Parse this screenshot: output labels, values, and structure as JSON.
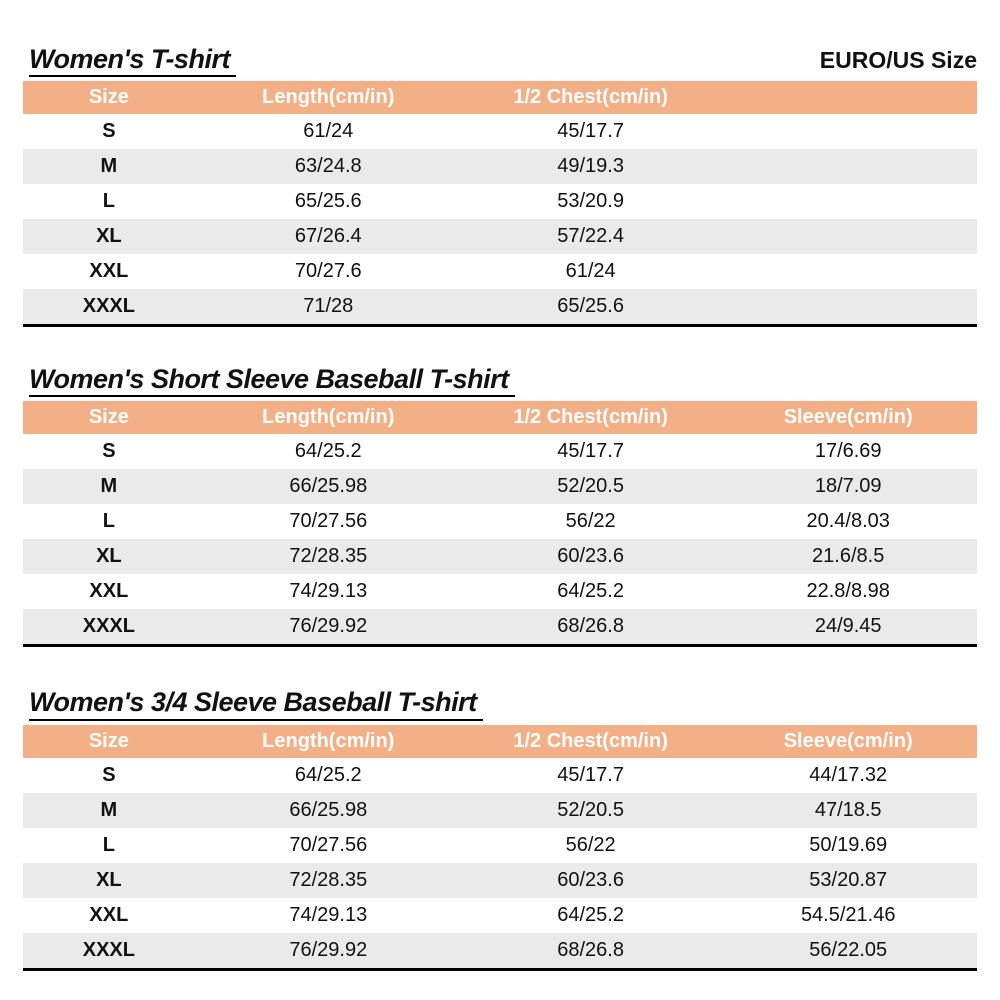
{
  "page": {
    "size_standard_label": "EURO/US Size"
  },
  "colors": {
    "header_bg": "#F3B086",
    "header_text": "#FFFFFF",
    "row_alt_bg": "#EAEAEA"
  },
  "tables": [
    {
      "title": "Women's T-shirt",
      "columns": [
        "Size",
        "Length(cm/in)",
        "1/2 Chest(cm/in)"
      ],
      "rows": [
        [
          "S",
          "61/24",
          "45/17.7"
        ],
        [
          "M",
          "63/24.8",
          "49/19.3"
        ],
        [
          "L",
          "65/25.6",
          "53/20.9"
        ],
        [
          "XL",
          "67/26.4",
          "57/22.4"
        ],
        [
          "XXL",
          "70/27.6",
          "61/24"
        ],
        [
          "XXXL",
          "71/28",
          "65/25.6"
        ]
      ]
    },
    {
      "title": "Women's Short Sleeve Baseball T-shirt",
      "columns": [
        "Size",
        "Length(cm/in)",
        "1/2 Chest(cm/in)",
        "Sleeve(cm/in)"
      ],
      "rows": [
        [
          "S",
          "64/25.2",
          "45/17.7",
          "17/6.69"
        ],
        [
          "M",
          "66/25.98",
          "52/20.5",
          "18/7.09"
        ],
        [
          "L",
          "70/27.56",
          "56/22",
          "20.4/8.03"
        ],
        [
          "XL",
          "72/28.35",
          "60/23.6",
          "21.6/8.5"
        ],
        [
          "XXL",
          "74/29.13",
          "64/25.2",
          "22.8/8.98"
        ],
        [
          "XXXL",
          "76/29.92",
          "68/26.8",
          "24/9.45"
        ]
      ]
    },
    {
      "title": "Women's 3/4 Sleeve Baseball T-shirt",
      "columns": [
        "Size",
        "Length(cm/in)",
        "1/2 Chest(cm/in)",
        "Sleeve(cm/in)"
      ],
      "rows": [
        [
          "S",
          "64/25.2",
          "45/17.7",
          "44/17.32"
        ],
        [
          "M",
          "66/25.98",
          "52/20.5",
          "47/18.5"
        ],
        [
          "L",
          "70/27.56",
          "56/22",
          "50/19.69"
        ],
        [
          "XL",
          "72/28.35",
          "60/23.6",
          "53/20.87"
        ],
        [
          "XXL",
          "74/29.13",
          "64/25.2",
          "54.5/21.46"
        ],
        [
          "XXXL",
          "76/29.92",
          "68/26.8",
          "56/22.05"
        ]
      ]
    }
  ]
}
